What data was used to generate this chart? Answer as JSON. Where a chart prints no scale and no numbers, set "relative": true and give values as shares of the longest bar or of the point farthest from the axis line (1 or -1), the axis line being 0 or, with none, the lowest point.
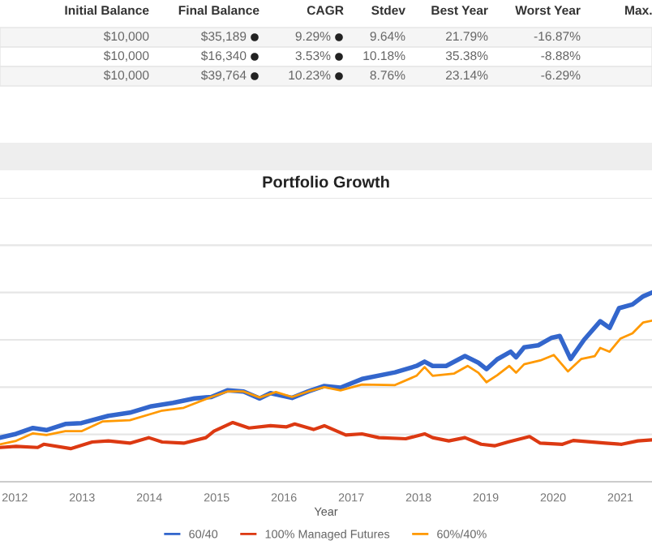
{
  "chart_data": [
    {
      "type": "other",
      "annotations": [
        "Initial Balance",
        "Final Balance",
        "CAGR",
        "Stdev",
        "Best Year",
        "Worst Year",
        "Max.",
        "$10,000",
        "$35,189",
        "9.29%",
        "9.64%",
        "21.79%",
        "-16.87%",
        "$10,000",
        "$16,340",
        "3.53%",
        "10.18%",
        "35.38%",
        "-8.88%",
        "$10,000",
        "$39,764",
        "10.23%",
        "8.76%",
        "23.14%",
        "-6.29%"
      ]
    },
    {
      "type": "line",
      "title": "Portfolio Growth",
      "xlabel": "Year",
      "relative": true,
      "grid": "y",
      "legend": "bottom",
      "marker": "none",
      "line_style": "solid",
      "xlim": [
        2011.78,
        2021.47
      ],
      "xticks": [
        2012,
        2013,
        2014,
        2015,
        2016,
        2017,
        2018,
        2019,
        2020,
        2021
      ],
      "series": [
        {
          "name": "60/40",
          "color": "#3366cc",
          "x": [
            2011.78,
            2012.02,
            2012.27,
            2012.47,
            2012.75,
            2012.99,
            2013.39,
            2013.71,
            2014.03,
            2014.35,
            2014.67,
            2014.92,
            2015.16,
            2015.4,
            2015.64,
            2015.8,
            2016.12,
            2016.36,
            2016.6,
            2016.84,
            2017.16,
            2017.65,
            2017.97,
            2018.09,
            2018.21,
            2018.41,
            2018.69,
            2018.89,
            2019.01,
            2019.17,
            2019.37,
            2019.45,
            2019.57,
            2019.78,
            2019.98,
            2020.1,
            2020.26,
            2020.46,
            2020.7,
            2020.84,
            2020.98,
            2021.18,
            2021.34,
            2021.47
          ],
          "values": [
            0.233,
            0.253,
            0.284,
            0.273,
            0.305,
            0.31,
            0.348,
            0.365,
            0.399,
            0.417,
            0.44,
            0.448,
            0.483,
            0.477,
            0.44,
            0.468,
            0.443,
            0.477,
            0.506,
            0.497,
            0.543,
            0.578,
            0.612,
            0.635,
            0.612,
            0.612,
            0.664,
            0.629,
            0.595,
            0.647,
            0.687,
            0.658,
            0.71,
            0.721,
            0.761,
            0.77,
            0.649,
            0.75,
            0.848,
            0.813,
            0.917,
            0.937,
            0.98,
            1
          ]
        },
        {
          "name": "100% Managed Futures",
          "color": "#dc3912",
          "x": [
            2011.78,
            2012.02,
            2012.34,
            2012.43,
            2012.83,
            2013.15,
            2013.39,
            2013.71,
            2013.99,
            2014.19,
            2014.51,
            2014.84,
            2014.96,
            2015.24,
            2015.48,
            2015.8,
            2016.04,
            2016.16,
            2016.44,
            2016.6,
            2016.92,
            2017.16,
            2017.41,
            2017.81,
            2018.09,
            2018.21,
            2018.45,
            2018.69,
            2018.93,
            2019.13,
            2019.33,
            2019.65,
            2019.81,
            2020.14,
            2020.3,
            2020.78,
            2021.02,
            2021.26,
            2021.47
          ],
          "values": [
            0.181,
            0.187,
            0.181,
            0.198,
            0.175,
            0.21,
            0.216,
            0.204,
            0.233,
            0.21,
            0.204,
            0.233,
            0.267,
            0.313,
            0.284,
            0.296,
            0.29,
            0.305,
            0.276,
            0.296,
            0.247,
            0.253,
            0.233,
            0.227,
            0.253,
            0.233,
            0.216,
            0.233,
            0.198,
            0.19,
            0.21,
            0.239,
            0.204,
            0.198,
            0.218,
            0.204,
            0.198,
            0.216,
            0.221
          ]
        },
        {
          "name": "60%/40%",
          "color": "#ff9900",
          "x": [
            2011.78,
            2012.02,
            2012.27,
            2012.47,
            2012.75,
            2012.99,
            2013.31,
            2013.71,
            2014.03,
            2014.19,
            2014.51,
            2014.92,
            2015.16,
            2015.4,
            2015.64,
            2015.88,
            2016.12,
            2016.36,
            2016.6,
            2016.84,
            2017.16,
            2017.65,
            2017.97,
            2018.09,
            2018.21,
            2018.53,
            2018.73,
            2018.89,
            2019.01,
            2019.17,
            2019.35,
            2019.45,
            2019.57,
            2019.81,
            2020.01,
            2020.22,
            2020.42,
            2020.62,
            2020.7,
            2020.84,
            2021.0,
            2021.18,
            2021.34,
            2021.47
          ],
          "values": [
            0.198,
            0.216,
            0.256,
            0.247,
            0.267,
            0.267,
            0.319,
            0.325,
            0.359,
            0.376,
            0.391,
            0.448,
            0.477,
            0.477,
            0.445,
            0.474,
            0.448,
            0.477,
            0.5,
            0.483,
            0.514,
            0.511,
            0.56,
            0.606,
            0.56,
            0.572,
            0.612,
            0.576,
            0.526,
            0.563,
            0.612,
            0.576,
            0.621,
            0.641,
            0.67,
            0.583,
            0.649,
            0.664,
            0.707,
            0.687,
            0.756,
            0.784,
            0.842,
            0.851
          ]
        }
      ]
    }
  ]
}
